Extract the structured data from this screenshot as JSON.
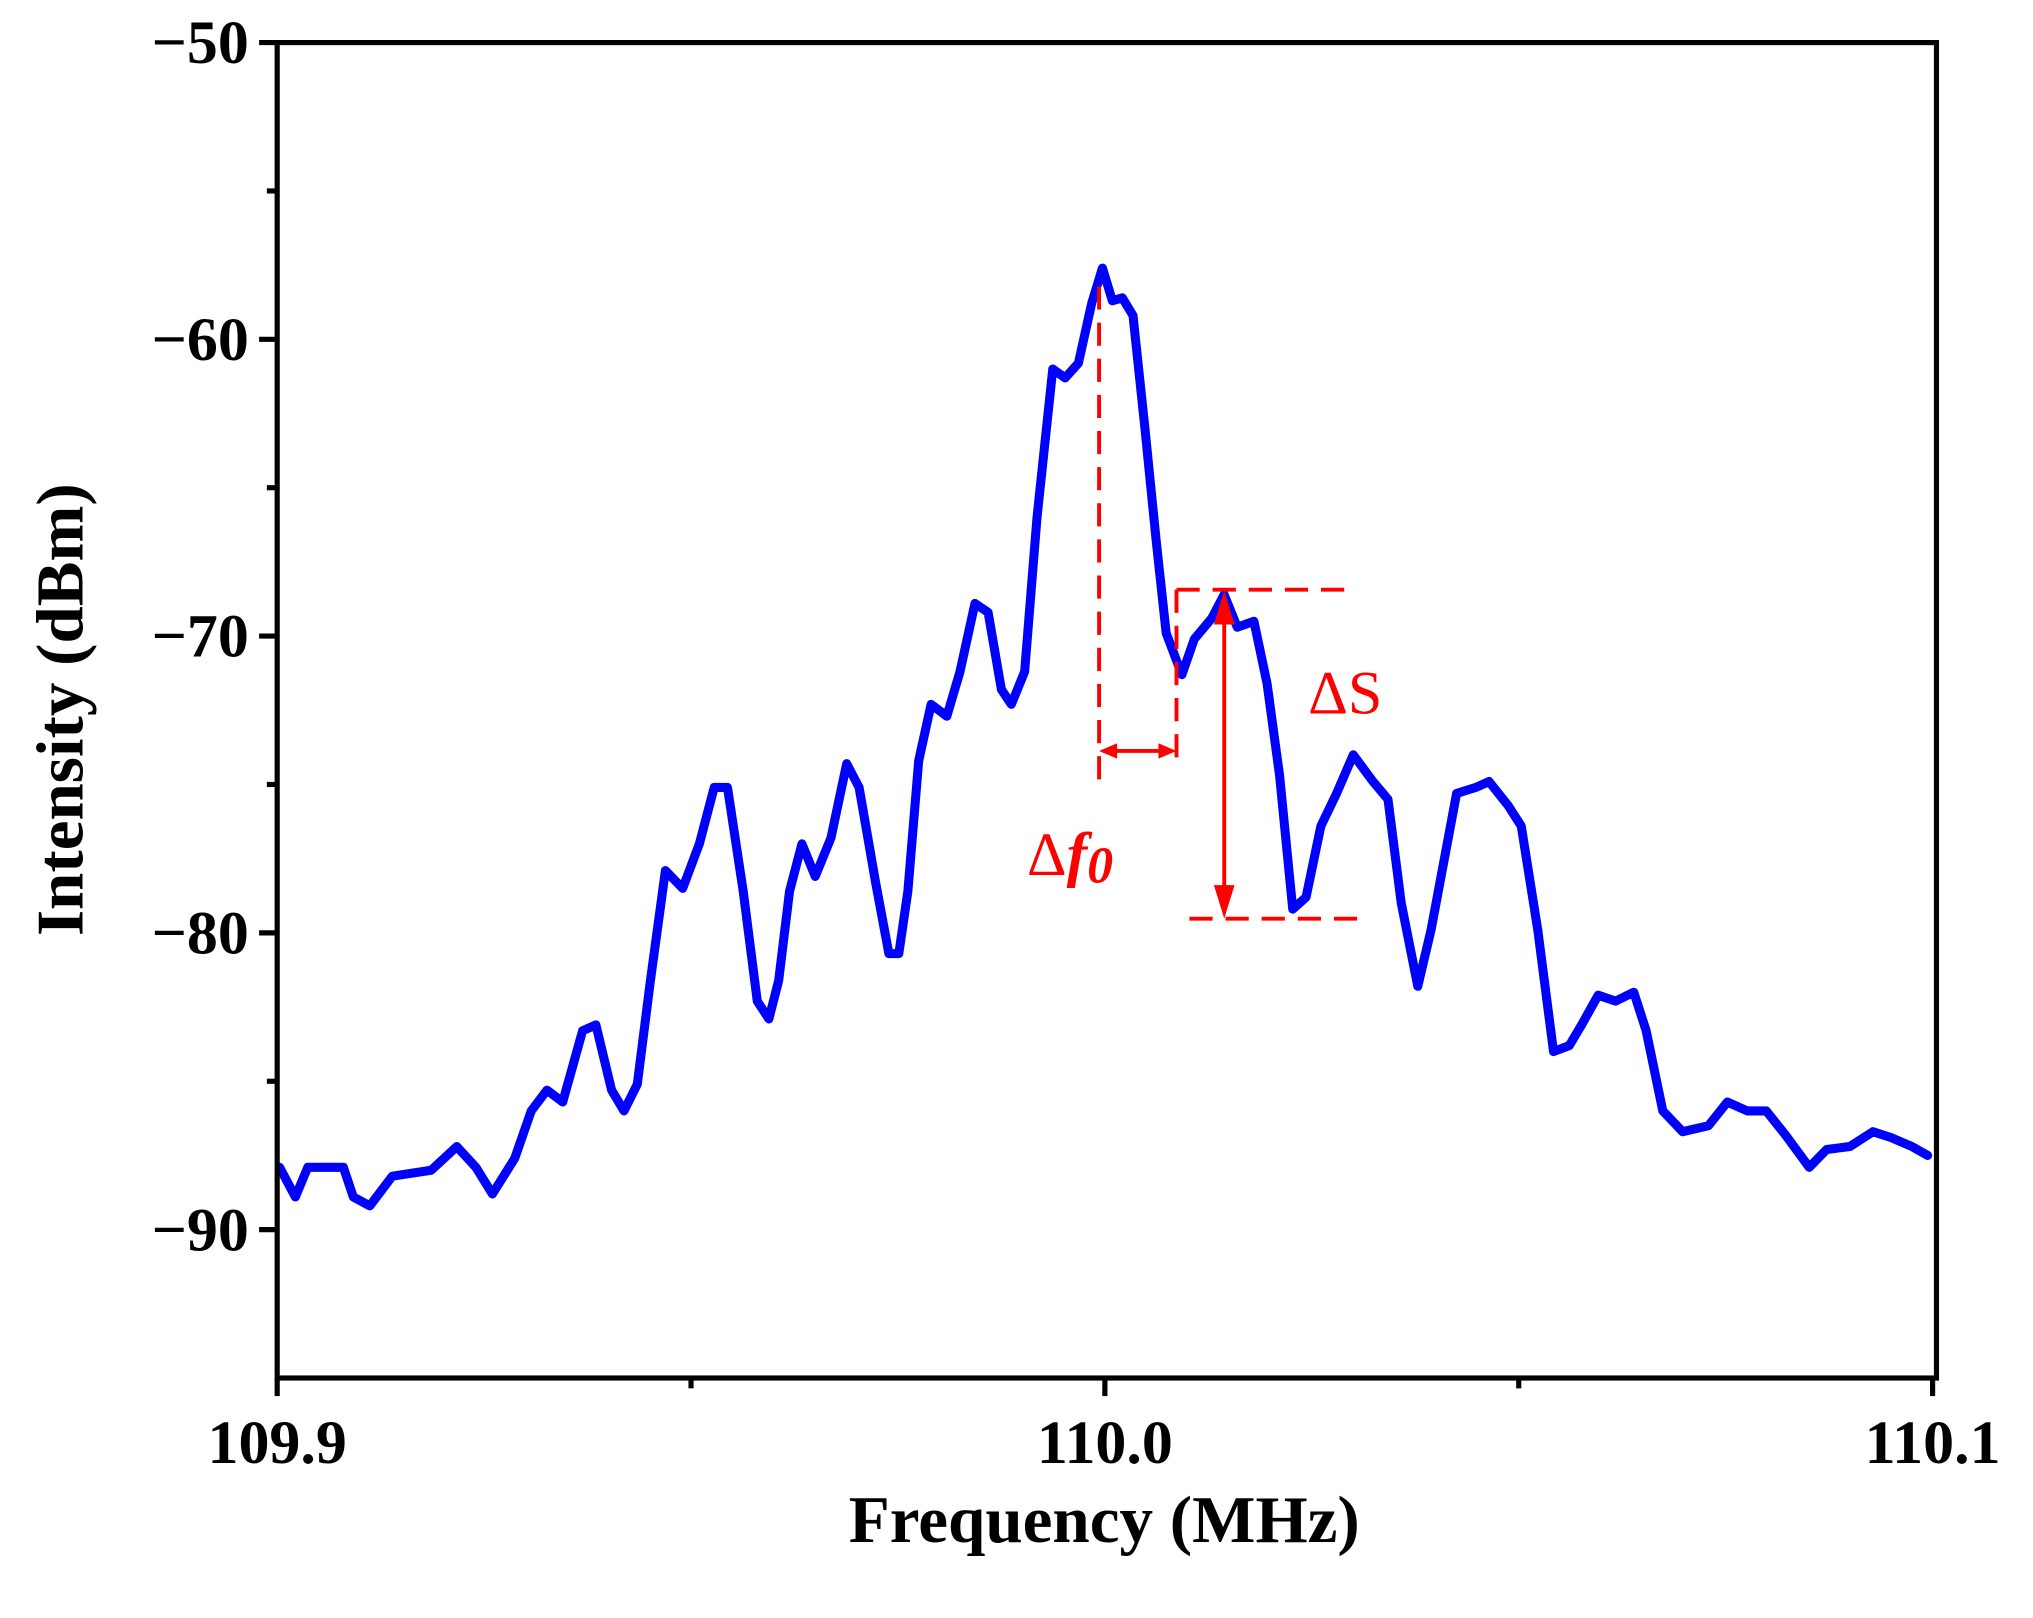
{
  "chart_data": {
    "type": "line",
    "xlabel": "Frequency (MHz)",
    "ylabel": "Intensity (dBm)",
    "xlim": [
      109.9,
      110.1
    ],
    "ylim": [
      -95,
      -50
    ],
    "xticks": [
      109.9,
      {
        "value": 110.0,
        "label": "110.0"
      },
      110.1
    ],
    "xminor_ticks": [
      109.95,
      110.05
    ],
    "yticks": [
      {
        "value": -90,
        "label": "−90"
      },
      {
        "value": -80,
        "label": "−80"
      },
      {
        "value": -70,
        "label": "−70"
      },
      {
        "value": -60,
        "label": "−60"
      },
      {
        "value": -50,
        "label": "−50"
      }
    ],
    "yminor_ticks": [
      -85,
      -75,
      -65,
      -55
    ],
    "annotations": {
      "delta_s": "ΔS",
      "delta_f": [
        "Δ",
        "f",
        "0"
      ]
    },
    "series": [
      {
        "color": "#0000ff",
        "x": [
          109.9003,
          109.9022,
          109.9037,
          109.908,
          109.9092,
          109.9112,
          109.9139,
          109.9186,
          109.9217,
          109.924,
          109.926,
          109.9287,
          109.9307,
          109.9326,
          109.9345,
          109.9369,
          109.9385,
          109.9404,
          109.9419,
          109.9435,
          109.9451,
          109.9469,
          109.949,
          109.951,
          109.9528,
          109.9544,
          109.9563,
          109.958,
          109.9594,
          109.9606,
          109.9619,
          109.9634,
          109.965,
          109.9669,
          109.9688,
          109.9703,
          109.9723,
          109.9739,
          109.9751,
          109.9762,
          109.9775,
          109.979,
          109.9809,
          109.9825,
          109.9843,
          109.9859,
          109.9875,
          109.9887,
          109.9903,
          109.9918,
          109.9937,
          109.9952,
          109.9968,
          109.9984,
          109.9997,
          110.0009,
          110.0021,
          110.0034,
          110.0048,
          110.0062,
          110.0074,
          110.0093,
          110.0108,
          110.0129,
          110.0144,
          110.016,
          110.018,
          110.0196,
          110.0211,
          110.0227,
          110.0243,
          110.0261,
          110.028,
          110.03,
          110.0324,
          110.0342,
          110.0358,
          110.0378,
          110.0394,
          110.0425,
          110.0448,
          110.0464,
          110.0487,
          110.0503,
          110.0523,
          110.0542,
          110.0561,
          110.0576,
          110.0596,
          110.0617,
          110.0639,
          110.0654,
          110.0674,
          110.0698,
          110.0729,
          110.0752,
          110.0776,
          110.0799,
          110.0822,
          110.0851,
          110.0872,
          110.09,
          110.0928,
          110.095,
          110.0975,
          110.0994
        ],
        "values": [
          -87.9,
          -88.9,
          -87.9,
          -87.9,
          -88.9,
          -89.2,
          -88.2,
          -88.0,
          -87.2,
          -87.9,
          -88.8,
          -87.6,
          -86.0,
          -85.3,
          -85.7,
          -83.3,
          -83.1,
          -85.3,
          -86.0,
          -85.1,
          -81.6,
          -77.9,
          -78.5,
          -77.0,
          -75.1,
          -75.1,
          -78.6,
          -82.3,
          -82.9,
          -81.6,
          -78.6,
          -77.0,
          -78.1,
          -76.8,
          -74.3,
          -75.1,
          -78.3,
          -80.7,
          -80.7,
          -78.6,
          -74.2,
          -72.3,
          -72.7,
          -71.2,
          -68.9,
          -69.2,
          -71.8,
          -72.3,
          -71.2,
          -66.0,
          -61.0,
          -61.3,
          -60.8,
          -58.8,
          -57.6,
          -58.7,
          -58.6,
          -59.2,
          -62.9,
          -66.8,
          -69.9,
          -71.3,
          -70.1,
          -69.4,
          -68.6,
          -69.7,
          -69.5,
          -71.6,
          -74.7,
          -79.2,
          -78.8,
          -76.4,
          -75.3,
          -74.0,
          -74.9,
          -75.5,
          -79.0,
          -81.8,
          -79.9,
          -75.3,
          -75.1,
          -74.9,
          -75.7,
          -76.4,
          -79.9,
          -84.0,
          -83.8,
          -83.1,
          -82.1,
          -82.3,
          -82.0,
          -83.3,
          -86.0,
          -86.7,
          -86.5,
          -85.7,
          -86.0,
          -86.0,
          -86.8,
          -87.9,
          -87.3,
          -87.2,
          -86.7,
          -86.9,
          -87.2,
          -87.5
        ]
      }
    ]
  }
}
